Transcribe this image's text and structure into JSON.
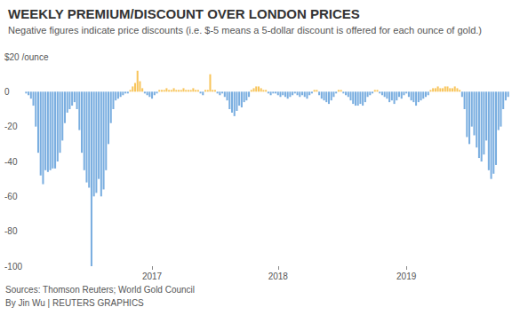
{
  "chart_data": {
    "type": "bar",
    "title": "WEEKLY PREMIUM/DISCOUNT OVER LONDON PRICES",
    "subtitle": "Negative figures indicate price discounts (i.e. $-5 means a 5-dollar discount is offered for each ounce of gold.)",
    "annotations": [
      "Sources: Thomson Reuters; World Gold Council",
      "By Jin Wu | REUTERS GRAPHICS"
    ],
    "categories": [
      null,
      null,
      null,
      null,
      null,
      null,
      null,
      null,
      null,
      null,
      null,
      null,
      null,
      null,
      null,
      null,
      null,
      null,
      null,
      null,
      null,
      null,
      null,
      null,
      null,
      null,
      null,
      null,
      null,
      null,
      null,
      null,
      null,
      null,
      null,
      null,
      null,
      null,
      null,
      null,
      null,
      null,
      null,
      null,
      null,
      null,
      null,
      null,
      null,
      null,
      null,
      null,
      "2017",
      null,
      null,
      null,
      null,
      null,
      null,
      null,
      null,
      null,
      null,
      null,
      null,
      null,
      null,
      null,
      null,
      null,
      null,
      null,
      null,
      null,
      null,
      null,
      null,
      null,
      null,
      null,
      null,
      null,
      null,
      null,
      null,
      null,
      null,
      null,
      null,
      null,
      null,
      null,
      null,
      null,
      null,
      null,
      null,
      null,
      null,
      null,
      null,
      null,
      null,
      null,
      "2018",
      null,
      null,
      null,
      null,
      null,
      null,
      null,
      null,
      null,
      null,
      null,
      null,
      null,
      null,
      null,
      null,
      null,
      null,
      null,
      null,
      null,
      null,
      null,
      null,
      null,
      null,
      null,
      null,
      null,
      null,
      null,
      null,
      null,
      null,
      null,
      null,
      null,
      null,
      null,
      null,
      null,
      null,
      null,
      null,
      null,
      null,
      null,
      null,
      null,
      null,
      null,
      null,
      "2019",
      null,
      null,
      null,
      null,
      null,
      null,
      null,
      null,
      null,
      null,
      null,
      null,
      null,
      null,
      null,
      null,
      null,
      null,
      null,
      null,
      null,
      null,
      null,
      null,
      null,
      null,
      null,
      null,
      null,
      null,
      null,
      null,
      null,
      null,
      null,
      null,
      null,
      null,
      null,
      null,
      null,
      null
    ],
    "values": [
      -1,
      -2,
      -4,
      -8,
      -20,
      -35,
      -48,
      -53,
      -45,
      -46,
      -45,
      -44,
      -44,
      -40,
      -35,
      -28,
      -18,
      -12,
      -10,
      -8,
      -6,
      -10,
      -22,
      -35,
      -45,
      -52,
      -55,
      -100,
      -60,
      -58,
      -50,
      -60,
      -56,
      -45,
      -30,
      -18,
      -10,
      -5,
      -4,
      -3,
      -2,
      -1,
      -1,
      1,
      3,
      5,
      12,
      6,
      2,
      -1,
      -2,
      -3,
      -4,
      -2,
      -1,
      1,
      1,
      1,
      2,
      1,
      1,
      2,
      1,
      1,
      1,
      2,
      1,
      1,
      1,
      2,
      1,
      1,
      -1,
      -2,
      1,
      1,
      10,
      1,
      1,
      -1,
      -2,
      -1,
      -3,
      -5,
      -10,
      -12,
      -14,
      -11,
      -8,
      -9,
      -6,
      -5,
      -3,
      1,
      2,
      3,
      3,
      2,
      1,
      1,
      -1,
      -2,
      -1,
      -1,
      -2,
      -3,
      -2,
      -3,
      -4,
      -3,
      -2,
      -1,
      -2,
      -3,
      -2,
      -3,
      -4,
      -2,
      -1,
      1,
      1,
      -2,
      -4,
      -5,
      -6,
      -7,
      -5,
      -3,
      -1,
      1,
      1,
      -1,
      -2,
      -3,
      -5,
      -7,
      -8,
      -8,
      -7,
      -8,
      -6,
      -3,
      -2,
      -1,
      1,
      1,
      -1,
      -2,
      -3,
      -4,
      -6,
      -5,
      -7,
      -5,
      -3,
      -4,
      -2,
      -1,
      -3,
      -5,
      -6,
      -8,
      -6,
      -5,
      -4,
      -3,
      -2,
      1,
      2,
      2,
      3,
      2,
      2,
      3,
      3,
      2,
      2,
      3,
      2,
      1,
      -3,
      -10,
      -26,
      -30,
      -20,
      -25,
      -32,
      -38,
      -40,
      -36,
      -28,
      -45,
      -50,
      -47,
      -42,
      -22,
      -20,
      -10,
      -5,
      -3
    ],
    "colors": [
      "#7aaee0",
      "#7aaee0",
      "#7aaee0",
      "#7aaee0",
      "#7aaee0",
      "#7aaee0",
      "#7aaee0",
      "#7aaee0",
      "#7aaee0",
      "#7aaee0",
      "#7aaee0",
      "#7aaee0",
      "#7aaee0",
      "#7aaee0",
      "#7aaee0",
      "#7aaee0",
      "#7aaee0",
      "#7aaee0",
      "#7aaee0",
      "#7aaee0",
      "#7aaee0",
      "#7aaee0",
      "#7aaee0",
      "#7aaee0",
      "#7aaee0",
      "#7aaee0",
      "#7aaee0",
      "#7aaee0",
      "#7aaee0",
      "#7aaee0",
      "#7aaee0",
      "#7aaee0",
      "#7aaee0",
      "#7aaee0",
      "#7aaee0",
      "#7aaee0",
      "#7aaee0",
      "#7aaee0",
      "#7aaee0",
      "#7aaee0",
      "#7aaee0",
      "#7aaee0",
      "#7aaee0",
      "#f8c55c",
      "#f8c55c",
      "#f8c55c",
      "#f8c55c",
      "#f8c55c",
      "#f8c55c",
      "#7aaee0",
      "#7aaee0",
      "#7aaee0",
      "#7aaee0",
      "#7aaee0",
      "#7aaee0",
      "#f8c55c",
      "#f8c55c",
      "#f8c55c",
      "#f8c55c",
      "#f8c55c",
      "#f8c55c",
      "#f8c55c",
      "#f8c55c",
      "#f8c55c",
      "#f8c55c",
      "#f8c55c",
      "#f8c55c",
      "#f8c55c",
      "#f8c55c",
      "#f8c55c",
      "#f8c55c",
      "#f8c55c",
      "#7aaee0",
      "#7aaee0",
      "#f8c55c",
      "#f8c55c",
      "#f8c55c",
      "#f8c55c",
      "#f8c55c",
      "#7aaee0",
      "#7aaee0",
      "#7aaee0",
      "#7aaee0",
      "#7aaee0",
      "#7aaee0",
      "#7aaee0",
      "#7aaee0",
      "#7aaee0",
      "#7aaee0",
      "#7aaee0",
      "#7aaee0",
      "#7aaee0",
      "#7aaee0",
      "#f8c55c",
      "#f8c55c",
      "#f8c55c",
      "#f8c55c",
      "#f8c55c",
      "#f8c55c",
      "#f8c55c",
      "#7aaee0",
      "#7aaee0",
      "#7aaee0",
      "#7aaee0",
      "#7aaee0",
      "#7aaee0",
      "#7aaee0",
      "#7aaee0",
      "#7aaee0",
      "#7aaee0",
      "#7aaee0",
      "#7aaee0",
      "#7aaee0",
      "#7aaee0",
      "#7aaee0",
      "#7aaee0",
      "#7aaee0",
      "#7aaee0",
      "#7aaee0",
      "#f8c55c",
      "#f8c55c",
      "#7aaee0",
      "#7aaee0",
      "#7aaee0",
      "#7aaee0",
      "#7aaee0",
      "#7aaee0",
      "#7aaee0",
      "#7aaee0",
      "#f8c55c",
      "#f8c55c",
      "#7aaee0",
      "#7aaee0",
      "#7aaee0",
      "#7aaee0",
      "#7aaee0",
      "#7aaee0",
      "#7aaee0",
      "#7aaee0",
      "#7aaee0",
      "#7aaee0",
      "#7aaee0",
      "#7aaee0",
      "#7aaee0",
      "#f8c55c",
      "#f8c55c",
      "#7aaee0",
      "#7aaee0",
      "#7aaee0",
      "#7aaee0",
      "#7aaee0",
      "#7aaee0",
      "#7aaee0",
      "#7aaee0",
      "#7aaee0",
      "#7aaee0",
      "#7aaee0",
      "#7aaee0",
      "#7aaee0",
      "#7aaee0",
      "#7aaee0",
      "#7aaee0",
      "#7aaee0",
      "#7aaee0",
      "#7aaee0",
      "#7aaee0",
      "#7aaee0",
      "#f8c55c",
      "#f8c55c",
      "#f8c55c",
      "#f8c55c",
      "#f8c55c",
      "#f8c55c",
      "#f8c55c",
      "#f8c55c",
      "#f8c55c",
      "#f8c55c",
      "#f8c55c",
      "#f8c55c",
      "#f8c55c",
      "#7aaee0",
      "#7aaee0",
      "#7aaee0",
      "#7aaee0",
      "#7aaee0",
      "#7aaee0",
      "#7aaee0",
      "#7aaee0",
      "#7aaee0",
      "#7aaee0",
      "#7aaee0",
      "#7aaee0",
      "#7aaee0",
      "#7aaee0",
      "#7aaee0",
      "#7aaee0",
      "#7aaee0",
      "#7aaee0",
      "#7aaee0",
      "#7aaee0"
    ],
    "ylim": [
      -100,
      20
    ],
    "yticks": [
      -100,
      -80,
      -60,
      -40,
      -20,
      0,
      {
        "value": 20,
        "label": "$20 /ounce"
      }
    ],
    "grid": false
  }
}
